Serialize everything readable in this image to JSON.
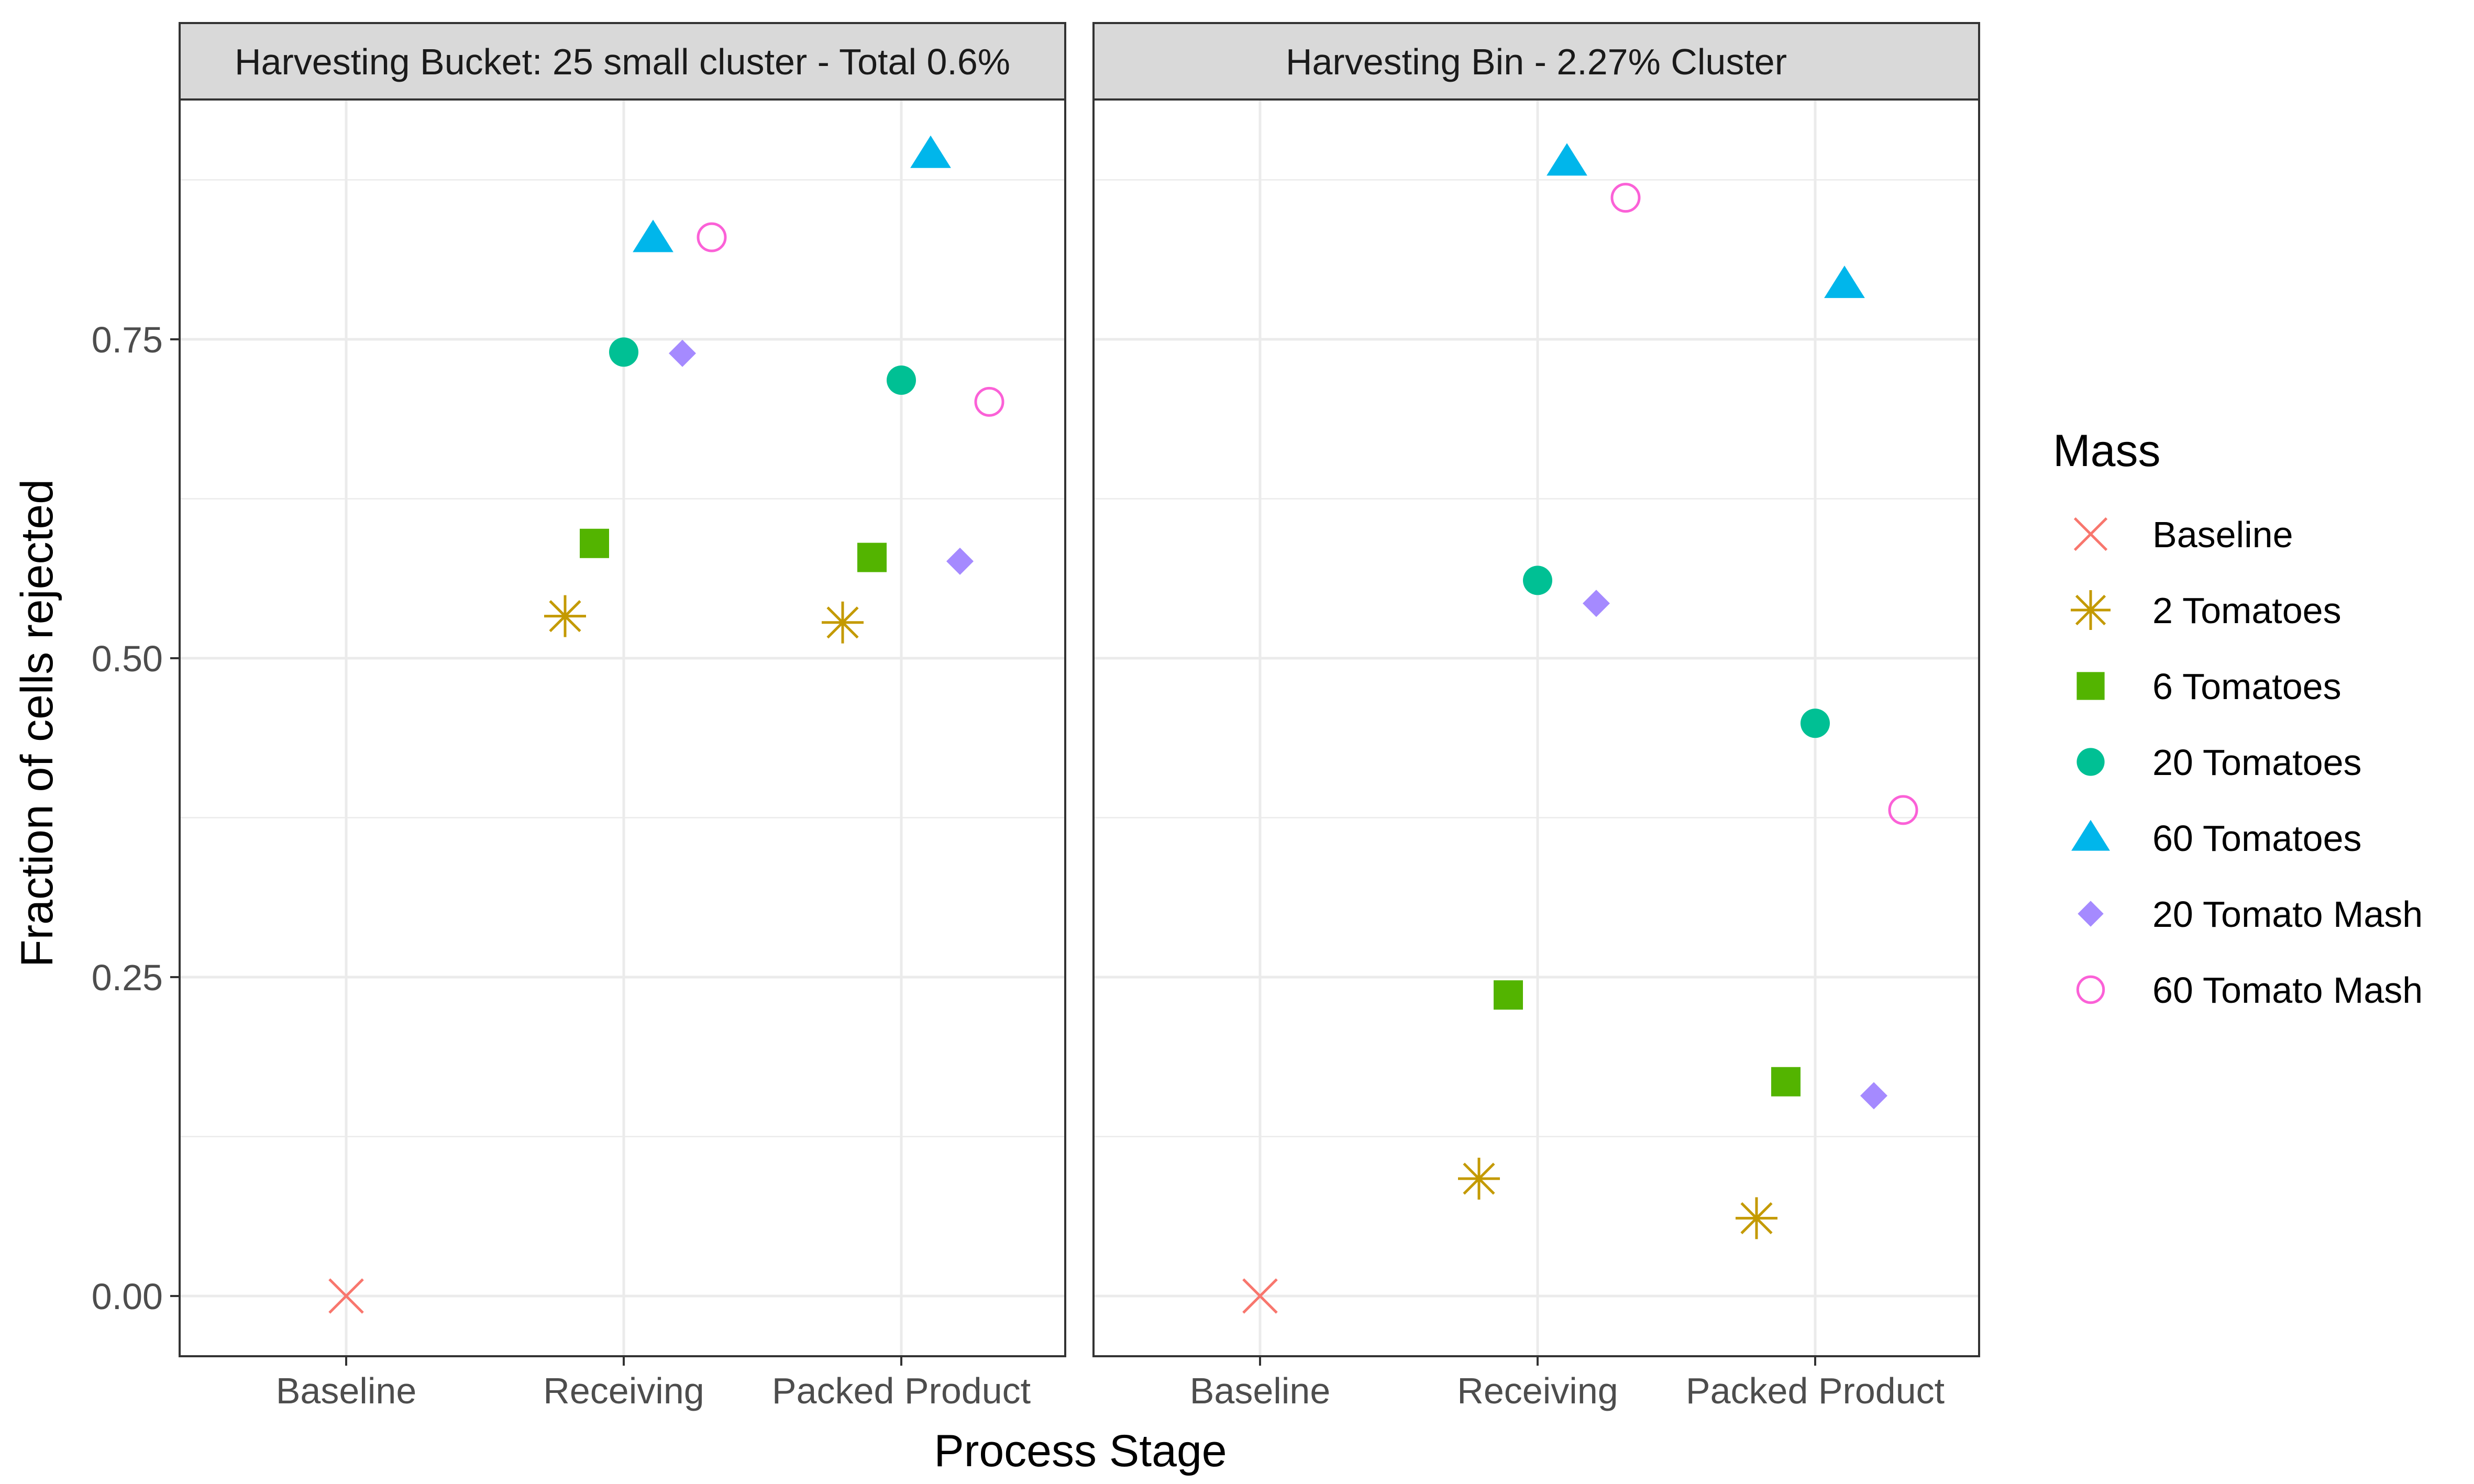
{
  "chart_data": {
    "type": "scatter",
    "xlabel": "Process Stage",
    "ylabel": "Fraction of cells rejected",
    "categories": [
      "Baseline",
      "Receiving",
      "Packed Product"
    ],
    "yticks": [
      0.0,
      0.25,
      0.5,
      0.75
    ],
    "ytick_labels": [
      "0.00",
      "0.25",
      "0.50",
      "0.75"
    ],
    "ylim": [
      -0.04,
      0.95
    ],
    "grid": true,
    "legend": {
      "title": "Mass",
      "position": "right",
      "entries": [
        {
          "name": "Baseline",
          "shape": "cross",
          "color": "#F8766D"
        },
        {
          "name": "2 Tomatoes",
          "shape": "asterisk",
          "color": "#C49A00"
        },
        {
          "name": "6 Tomatoes",
          "shape": "square",
          "color": "#53B400"
        },
        {
          "name": "20 Tomatoes",
          "shape": "circle",
          "color": "#00C094"
        },
        {
          "name": "60 Tomatoes",
          "shape": "triangle",
          "color": "#00B6EB"
        },
        {
          "name": "20 Tomato Mash",
          "shape": "diamond",
          "color": "#A58AFF"
        },
        {
          "name": "60 Tomato Mash",
          "shape": "open-circle",
          "color": "#FB61D7"
        }
      ]
    },
    "panels": [
      {
        "title": "Harvesting Bucket: 25 small cluster - Total 0.6%",
        "series": [
          {
            "name": "Baseline",
            "points": [
              {
                "x": "Baseline",
                "y": 0.0
              }
            ]
          },
          {
            "name": "2 Tomatoes",
            "points": [
              {
                "x": "Receiving",
                "y": 0.533
              },
              {
                "x": "Packed Product",
                "y": 0.528
              }
            ]
          },
          {
            "name": "6 Tomatoes",
            "points": [
              {
                "x": "Receiving",
                "y": 0.59
              },
              {
                "x": "Packed Product",
                "y": 0.579
              }
            ]
          },
          {
            "name": "20 Tomatoes",
            "points": [
              {
                "x": "Receiving",
                "y": 0.74
              },
              {
                "x": "Packed Product",
                "y": 0.718
              }
            ]
          },
          {
            "name": "60 Tomatoes",
            "points": [
              {
                "x": "Receiving",
                "y": 0.829
              },
              {
                "x": "Packed Product",
                "y": 0.895
              }
            ]
          },
          {
            "name": "20 Tomato Mash",
            "points": [
              {
                "x": "Receiving",
                "y": 0.739
              },
              {
                "x": "Packed Product",
                "y": 0.576
              }
            ]
          },
          {
            "name": "60 Tomato Mash",
            "points": [
              {
                "x": "Receiving",
                "y": 0.83
              },
              {
                "x": "Packed Product",
                "y": 0.701
              }
            ]
          }
        ]
      },
      {
        "title": "Harvesting Bin - 2.27% Cluster",
        "series": [
          {
            "name": "Baseline",
            "points": [
              {
                "x": "Baseline",
                "y": 0.0
              }
            ]
          },
          {
            "name": "2 Tomatoes",
            "points": [
              {
                "x": "Receiving",
                "y": 0.092
              },
              {
                "x": "Packed Product",
                "y": 0.061
              }
            ]
          },
          {
            "name": "6 Tomatoes",
            "points": [
              {
                "x": "Receiving",
                "y": 0.236
              },
              {
                "x": "Packed Product",
                "y": 0.168
              }
            ]
          },
          {
            "name": "20 Tomatoes",
            "points": [
              {
                "x": "Receiving",
                "y": 0.561
              },
              {
                "x": "Packed Product",
                "y": 0.449
              }
            ]
          },
          {
            "name": "60 Tomatoes",
            "points": [
              {
                "x": "Receiving",
                "y": 0.889
              },
              {
                "x": "Packed Product",
                "y": 0.793
              }
            ]
          },
          {
            "name": "20 Tomato Mash",
            "points": [
              {
                "x": "Receiving",
                "y": 0.543
              },
              {
                "x": "Packed Product",
                "y": 0.157
              }
            ]
          },
          {
            "name": "60 Tomato Mash",
            "points": [
              {
                "x": "Receiving",
                "y": 0.861
              },
              {
                "x": "Packed Product",
                "y": 0.381
              }
            ]
          }
        ]
      }
    ]
  }
}
